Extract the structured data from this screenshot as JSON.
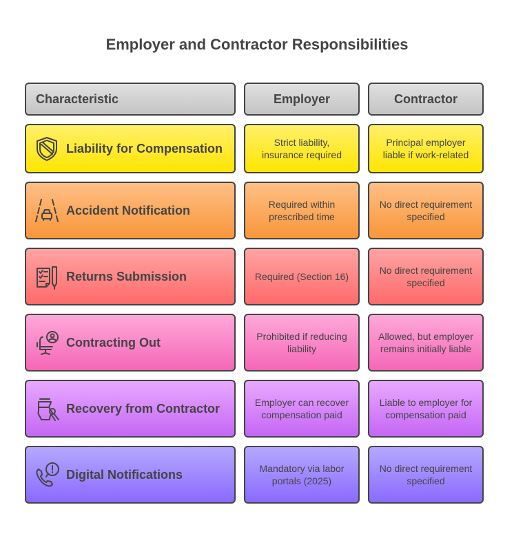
{
  "title": "Employer and Contractor Responsibilities",
  "headers": [
    "Characteristic",
    "Employer",
    "Contractor"
  ],
  "rows": [
    {
      "label": "Liability for Compensation",
      "icon": "shield-icon",
      "employer": "Strict liability, insurance required",
      "contractor": "Principal employer liable if work-related",
      "colors": [
        "#fff06a",
        "#ffe500"
      ]
    },
    {
      "label": "Accident Notification",
      "icon": "road-car-icon",
      "employer": "Required within prescribed time",
      "contractor": "No direct requirement specified",
      "colors": [
        "#ffbf85",
        "#f9963a"
      ]
    },
    {
      "label": "Returns Submission",
      "icon": "checklist-pen-icon",
      "employer": "Required (Section 16)",
      "contractor": "No direct requirement specified",
      "colors": [
        "#ffa3a3",
        "#ff6a6a"
      ]
    },
    {
      "label": "Contracting Out",
      "icon": "office-chair-person-icon",
      "employer": "Prohibited if reducing liability",
      "contractor": "Allowed, but employer remains initially liable",
      "colors": [
        "#ffa8da",
        "#f567b7"
      ]
    },
    {
      "label": "Recovery from Contractor",
      "icon": "jar-spoon-icon",
      "employer": "Employer can recover compensation paid",
      "contractor": "Liable to employer for compensation paid",
      "colors": [
        "#e8a8ff",
        "#c567f5"
      ]
    },
    {
      "label": "Digital Notifications",
      "icon": "phone-alert-icon",
      "employer": "Mandatory via labor portals (2025)",
      "contractor": "No direct requirement specified",
      "colors": [
        "#b5a8ff",
        "#8a6aff"
      ]
    }
  ]
}
